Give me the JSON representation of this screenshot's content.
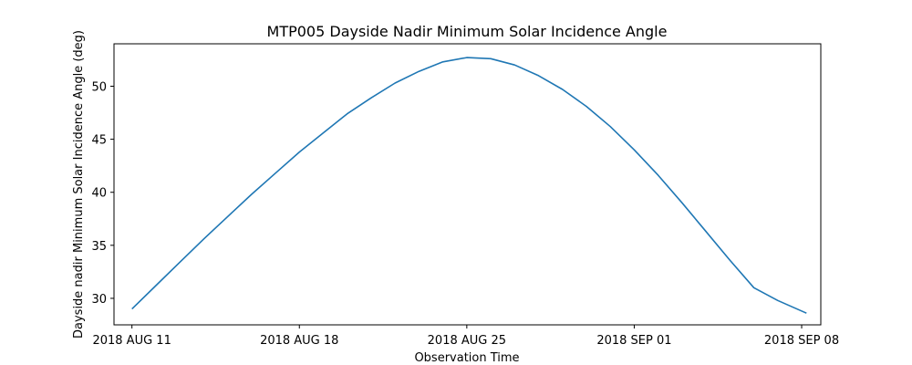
{
  "chart_data": {
    "type": "line",
    "title": "MTP005 Dayside Nadir Minimum Solar Incidence Angle",
    "xlabel": "Observation Time",
    "ylabel": "Dayside nadir Minimum Solar Incidence Angle (deg)",
    "x_unit": "days since 2018 AUG 11",
    "xlim": [
      -0.75,
      28.8
    ],
    "ylim": [
      27.5,
      54.0
    ],
    "x_ticks": [
      {
        "value": 0,
        "label": "2018 AUG 11"
      },
      {
        "value": 7,
        "label": "2018 AUG 18"
      },
      {
        "value": 14,
        "label": "2018 AUG 25"
      },
      {
        "value": 21,
        "label": "2018 SEP 01"
      },
      {
        "value": 28,
        "label": "2018 SEP 08"
      }
    ],
    "y_ticks": [
      {
        "value": 30,
        "label": "30"
      },
      {
        "value": 35,
        "label": "35"
      },
      {
        "value": 40,
        "label": "40"
      },
      {
        "value": 45,
        "label": "45"
      },
      {
        "value": 50,
        "label": "50"
      }
    ],
    "grid": false,
    "series": [
      {
        "name": "Dayside nadir Minimum Solar Incidence Angle",
        "color": "#1f77b4",
        "x": [
          0,
          1,
          2,
          3,
          4,
          5,
          6,
          7,
          8,
          9,
          10,
          11,
          12,
          13,
          14,
          15,
          16,
          17,
          18,
          19,
          20,
          21,
          22,
          23,
          24,
          25,
          26,
          27,
          28.2
        ],
        "y": [
          29.0,
          31.2,
          33.4,
          35.6,
          37.7,
          39.8,
          41.8,
          43.8,
          45.6,
          47.4,
          48.9,
          50.3,
          51.4,
          52.3,
          52.7,
          52.6,
          52.0,
          51.0,
          49.7,
          48.1,
          46.2,
          44.0,
          41.6,
          39.0,
          36.3,
          33.6,
          31.0,
          29.8,
          28.6
        ]
      }
    ]
  }
}
